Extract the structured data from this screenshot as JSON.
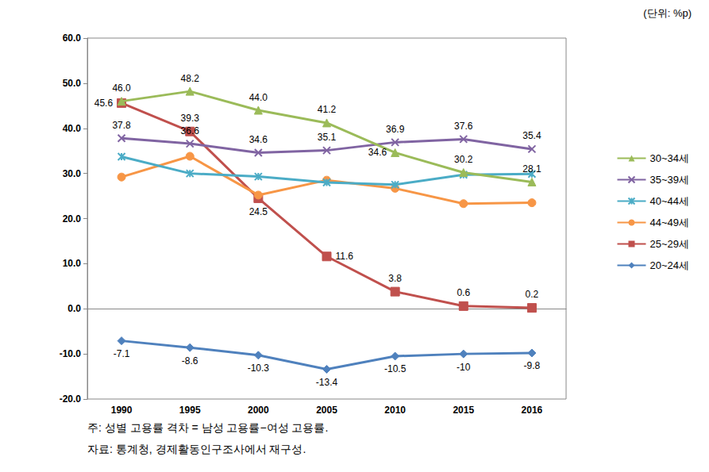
{
  "chart_data": {
    "type": "line",
    "unit": "(단위: %p)",
    "notes": [
      "주: 성별 고용률 격차 = 남성 고용률−여성 고용률.",
      "자료: 통계청, 경제활동인구조사에서 재구성."
    ],
    "categories": [
      "1990",
      "1995",
      "2000",
      "2005",
      "2010",
      "2015",
      "2016"
    ],
    "ylim": [
      -20,
      60
    ],
    "yticks": [
      {
        "value": -20,
        "label": "-20.0"
      },
      {
        "value": -10,
        "label": "-10.0"
      },
      {
        "value": 0,
        "label": "0.0"
      },
      {
        "value": 10,
        "label": "10.0"
      },
      {
        "value": 20,
        "label": "20.0"
      },
      {
        "value": 30,
        "label": "30.0"
      },
      {
        "value": 40,
        "label": "40.0"
      },
      {
        "value": 50,
        "label": "50.0"
      },
      {
        "value": 60,
        "label": "60.0"
      }
    ],
    "grid": false,
    "legend": "right",
    "series": [
      {
        "name": "30~34세",
        "color": "#9bbb59",
        "marker": "triangle",
        "data_labels": true,
        "values": [
          46.0,
          48.2,
          44.0,
          41.2,
          34.6,
          30.2,
          28.1
        ],
        "value_labels": [
          "46.0",
          "48.2",
          "44.0",
          "41.2",
          "34.6",
          "30.2",
          "28.1"
        ]
      },
      {
        "name": "35~39세",
        "color": "#8064a2",
        "marker": "x",
        "data_labels": true,
        "values": [
          37.8,
          36.6,
          34.6,
          35.1,
          36.9,
          37.6,
          35.4
        ]
      },
      {
        "name": "40~44세",
        "color": "#4bacc6",
        "marker": "asterisk",
        "data_labels": false,
        "values": [
          33.7,
          30.0,
          29.3,
          28.0,
          27.5,
          29.7,
          29.9
        ]
      },
      {
        "name": "44~49세",
        "color": "#f79646",
        "marker": "circle",
        "data_labels": false,
        "values": [
          29.2,
          33.8,
          25.2,
          28.5,
          26.7,
          23.3,
          23.5
        ]
      },
      {
        "name": "25~29세",
        "color": "#c0504d",
        "marker": "square",
        "data_labels": true,
        "values": [
          45.6,
          39.3,
          24.5,
          11.6,
          3.8,
          0.6,
          0.2
        ]
      },
      {
        "name": "20~24세",
        "color": "#4f81bd",
        "marker": "diamond",
        "data_labels": true,
        "values": [
          -7.1,
          -8.6,
          -10.3,
          -13.4,
          -10.5,
          -10.0,
          -9.8
        ]
      }
    ]
  }
}
